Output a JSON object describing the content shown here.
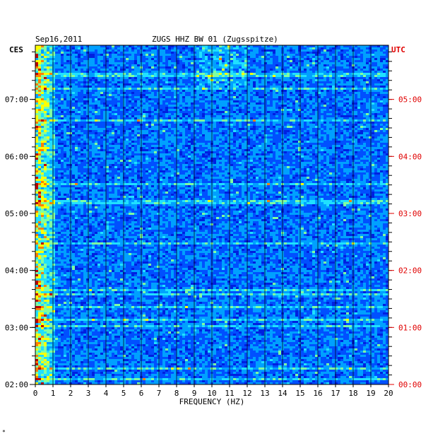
{
  "header": {
    "date": "Sep16,2011",
    "title": "ZUGS HHZ BW 01 (Zugsspitze)",
    "left_zone": "CES",
    "right_zone": "UTC"
  },
  "footer_mark": "*",
  "chart_data": {
    "type": "heatmap",
    "title": "ZUGS HHZ BW 01 (Zugsspitze)",
    "xlabel": "FREQUENCY (HZ)",
    "xlim": [
      0,
      20
    ],
    "x_ticks": [
      "0",
      "1",
      "2",
      "3",
      "4",
      "5",
      "6",
      "7",
      "8",
      "9",
      "10",
      "11",
      "12",
      "13",
      "14",
      "15",
      "16",
      "17",
      "18",
      "19",
      "20"
    ],
    "y_left_label": "CES",
    "y_left_ticks": [
      "07:00",
      "06:00",
      "05:00",
      "04:00",
      "03:00",
      "02:00"
    ],
    "y_right_label": "UTC",
    "y_right_ticks": [
      "05:00",
      "04:00",
      "03:00",
      "02:00",
      "01:00",
      "00:00"
    ],
    "time_range_ces_hours": [
      2.0,
      7.95
    ],
    "colormap": [
      "#0000a0",
      "#0020e0",
      "#0050ff",
      "#00a0ff",
      "#20e0ff",
      "#80ffa0",
      "#ffff00",
      "#ff8000",
      "#c00000"
    ],
    "grid": true
  }
}
